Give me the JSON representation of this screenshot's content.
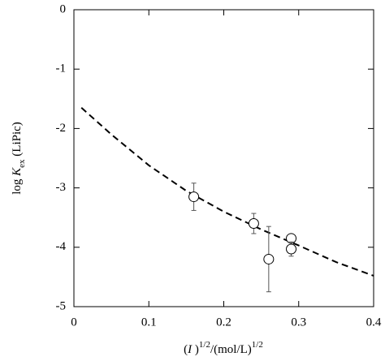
{
  "chart_data": {
    "type": "scatter",
    "ylabel_parts": [
      "log ",
      "K",
      "ex",
      " (LiPic)"
    ],
    "xlabel_parts": [
      "(",
      "I",
      " )",
      "1/2",
      "/(mol/L)",
      "1/2"
    ],
    "xlim": [
      0,
      0.4
    ],
    "ylim": [
      -5,
      0
    ],
    "xticks": [
      0,
      0.1,
      0.2,
      0.3,
      0.4
    ],
    "yticks": [
      -5,
      -4,
      -3,
      -2,
      -1,
      0
    ],
    "series": [
      {
        "mode": "markers",
        "color": "#000000",
        "x": [
          0.16,
          0.24,
          0.26,
          0.29,
          0.29
        ],
        "values": [
          -3.15,
          -3.6,
          -4.2,
          -3.85,
          -4.03
        ],
        "errors": [
          0.23,
          0.17,
          0.55,
          0.05,
          0.12
        ]
      },
      {
        "mode": "line",
        "color": "#000000",
        "dashed": true,
        "x": [
          0.01,
          0.05,
          0.1,
          0.15,
          0.2,
          0.25,
          0.3,
          0.35,
          0.4
        ],
        "values": [
          -1.65,
          -2.1,
          -2.62,
          -3.05,
          -3.4,
          -3.7,
          -3.97,
          -4.25,
          -4.48
        ]
      }
    ]
  }
}
